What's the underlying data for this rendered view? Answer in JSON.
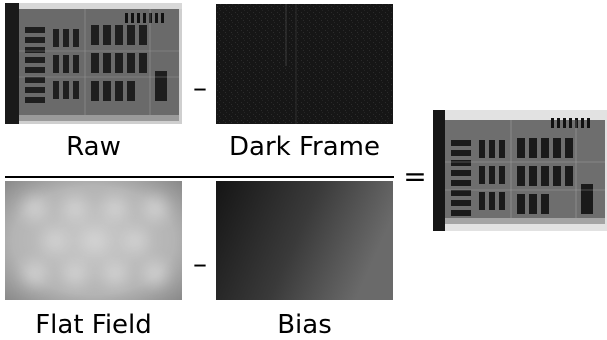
{
  "numerator": {
    "raw": {
      "label": "Raw",
      "icon": "circuit-board-photo"
    },
    "dark_frame": {
      "label": "Dark Frame",
      "icon": "dark-noise-image"
    },
    "operator": "–"
  },
  "denominator": {
    "flat_field": {
      "label": "Flat Field",
      "icon": "blurred-flat-field-image"
    },
    "bias": {
      "label": "Bias",
      "icon": "gradient-bias-image"
    },
    "operator": "–"
  },
  "equals": "=",
  "result": {
    "icon": "calibrated-circuit-board-photo"
  }
}
